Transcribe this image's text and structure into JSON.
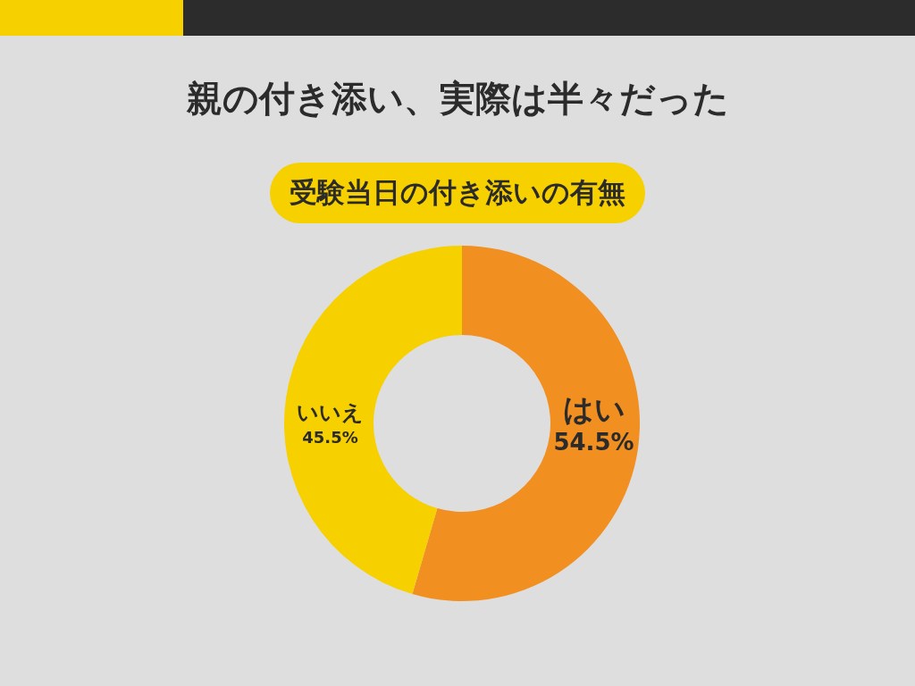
{
  "chart_data": {
    "type": "donut",
    "title": "親の付き添い、実際は半々だった",
    "subtitle": "受験当日の付き添いの有無",
    "categories": [
      "はい",
      "いいえ"
    ],
    "values": [
      54.5,
      45.5
    ],
    "colors": [
      "#f18f21",
      "#f7d000"
    ],
    "value_labels": [
      "54.5%",
      "45.5%"
    ]
  }
}
